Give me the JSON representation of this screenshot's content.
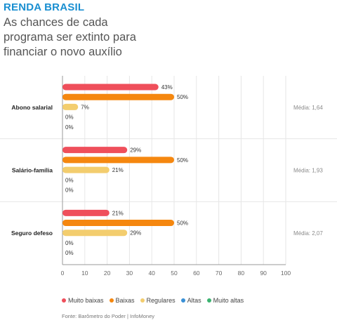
{
  "header": {
    "kicker": "RENDA BRASIL",
    "headline_lines": [
      "As chances de cada",
      "programa ser extinto para",
      "financiar o novo auxílio"
    ]
  },
  "chart_data": {
    "type": "bar",
    "orientation": "horizontal",
    "groups": [
      {
        "label": "Abono salarial",
        "values": [
          43,
          50,
          7,
          0,
          0
        ],
        "value_labels": [
          "43%",
          "50%",
          "7%",
          "0%",
          "0%"
        ],
        "media": "Média: 1,64"
      },
      {
        "label": "Salário-família",
        "values": [
          29,
          50,
          21,
          0,
          0
        ],
        "value_labels": [
          "29%",
          "50%",
          "21%",
          "0%",
          "0%"
        ],
        "media": "Média: 1,93"
      },
      {
        "label": "Seguro defeso",
        "values": [
          21,
          50,
          29,
          0,
          0
        ],
        "value_labels": [
          "21%",
          "50%",
          "29%",
          "0%",
          "0%"
        ],
        "media": "Média: 2,07"
      }
    ],
    "series": [
      {
        "name": "Muito baixas",
        "color": "#ef4f5b"
      },
      {
        "name": "Baixas",
        "color": "#f5870f"
      },
      {
        "name": "Regulares",
        "color": "#f3cd6e"
      },
      {
        "name": "Altas",
        "color": "#3a90d6"
      },
      {
        "name": "Muito altas",
        "color": "#3cb371"
      }
    ],
    "xlim": [
      0,
      100
    ],
    "xticks": [
      "0",
      "10",
      "20",
      "30",
      "40",
      "50",
      "60",
      "70",
      "80",
      "90",
      "100"
    ],
    "gridlines": true,
    "legend_position": "bottom"
  },
  "source": "Fonte: Barômetro do Poder | InfoMoney"
}
